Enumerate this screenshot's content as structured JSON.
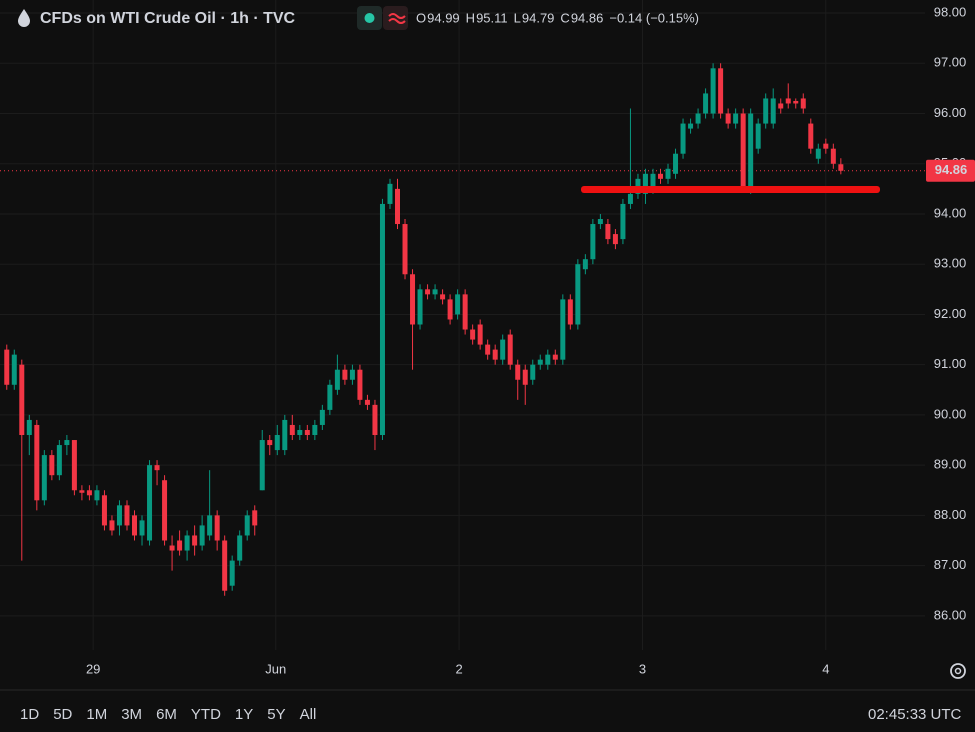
{
  "chart_data": {
    "type": "candlestick",
    "title": "CFDs on WTI Crude Oil · 1h · TVC",
    "ohlc_labels": [
      "O",
      "H",
      "L",
      "C"
    ],
    "change": "−0.14 (−0.15%)",
    "up_color": "#089981",
    "down_color": "#f23645",
    "grid": true,
    "ylim": [
      85.32,
      98.26
    ],
    "yticks": [
      {
        "value": 86,
        "label": "86.00"
      },
      {
        "value": 87,
        "label": "87.00"
      },
      {
        "value": 88,
        "label": "88.00"
      },
      {
        "value": 89,
        "label": "89.00"
      },
      {
        "value": 90,
        "label": "90.00"
      },
      {
        "value": 91,
        "label": "91.00"
      },
      {
        "value": 92,
        "label": "92.00"
      },
      {
        "value": 93,
        "label": "93.00"
      },
      {
        "value": 94,
        "label": "94.00"
      },
      {
        "value": 95,
        "label": "95.00"
      },
      {
        "value": 96,
        "label": "96.00"
      },
      {
        "value": 97,
        "label": "97.00"
      },
      {
        "value": 98,
        "label": "98.00"
      }
    ],
    "xlim": [
      -0.9,
      122.2
    ],
    "xticks": [
      {
        "value": 11.5,
        "label": "29"
      },
      {
        "value": 35.8,
        "label": "Jun"
      },
      {
        "value": 60.2,
        "label": "2"
      },
      {
        "value": 84.6,
        "label": "3"
      },
      {
        "value": 109,
        "label": "4"
      }
    ],
    "x": [
      0,
      1,
      2,
      3,
      4,
      5,
      6,
      7,
      8,
      9,
      10,
      11,
      12,
      13,
      14,
      15,
      16,
      17,
      18,
      19,
      20,
      21,
      22,
      23,
      24,
      25,
      26,
      27,
      28,
      29,
      30,
      31,
      32,
      33,
      34,
      35,
      36,
      37,
      38,
      39,
      40,
      41,
      42,
      43,
      44,
      45,
      46,
      47,
      48,
      49,
      50,
      51,
      52,
      53,
      54,
      55,
      56,
      57,
      58,
      59,
      60,
      61,
      62,
      63,
      64,
      65,
      66,
      67,
      68,
      69,
      70,
      71,
      72,
      73,
      74,
      75,
      76,
      77,
      78,
      79,
      80,
      81,
      82,
      83,
      84,
      85,
      86,
      87,
      88,
      89,
      90,
      91,
      92,
      93,
      94,
      95,
      96,
      97,
      98,
      99,
      100,
      101,
      102,
      103,
      104,
      105,
      106,
      107,
      108,
      109,
      110,
      111
    ],
    "open": [
      91.3,
      90.6,
      91.0,
      89.6,
      89.8,
      88.3,
      89.2,
      88.8,
      89.4,
      89.5,
      88.5,
      88.5,
      88.3,
      88.4,
      87.9,
      87.8,
      88.2,
      88.0,
      87.6,
      87.5,
      89.0,
      88.7,
      87.4,
      87.5,
      87.3,
      87.6,
      87.4,
      87.6,
      88.0,
      87.5,
      86.6,
      87.1,
      87.6,
      88.1,
      88.5,
      89.5,
      89.3,
      89.3,
      89.8,
      89.6,
      89.7,
      89.6,
      89.8,
      90.1,
      90.5,
      90.9,
      90.7,
      90.9,
      90.3,
      90.2,
      89.6,
      94.2,
      94.5,
      93.8,
      92.8,
      91.8,
      92.5,
      92.4,
      92.4,
      92.3,
      92.0,
      92.4,
      91.7,
      91.8,
      91.4,
      91.3,
      91.1,
      91.6,
      91.0,
      90.9,
      90.7,
      91.0,
      91.0,
      91.2,
      91.1,
      92.3,
      91.8,
      92.9,
      93.1,
      93.8,
      93.8,
      93.6,
      93.5,
      94.2,
      94.4,
      94.4,
      94.5,
      94.8,
      94.7,
      94.8,
      95.2,
      95.7,
      95.8,
      96.0,
      96.0,
      96.9,
      96.0,
      95.8,
      96.0,
      94.5,
      95.3,
      95.8,
      95.8,
      96.2,
      96.3,
      96.25,
      96.3,
      95.8,
      95.1,
      95.4,
      95.3,
      94.99
    ],
    "high": [
      91.4,
      91.3,
      91.1,
      90.0,
      89.9,
      89.3,
      89.3,
      89.5,
      89.6,
      89.5,
      88.6,
      88.6,
      88.6,
      88.5,
      88.0,
      88.3,
      88.3,
      88.1,
      88.0,
      89.1,
      89.1,
      88.8,
      87.6,
      87.7,
      87.7,
      87.8,
      88.0,
      88.9,
      88.1,
      87.6,
      87.2,
      87.7,
      88.1,
      88.2,
      89.7,
      89.6,
      89.8,
      90.0,
      90.0,
      89.8,
      89.8,
      89.9,
      90.2,
      90.7,
      91.2,
      91.0,
      91.0,
      91.0,
      90.4,
      90.3,
      94.3,
      94.7,
      94.7,
      93.9,
      92.9,
      92.6,
      92.6,
      92.6,
      92.5,
      92.4,
      92.5,
      92.5,
      91.8,
      91.9,
      91.5,
      91.4,
      91.6,
      91.7,
      91.1,
      91.0,
      91.1,
      91.2,
      91.3,
      91.3,
      92.4,
      92.4,
      93.1,
      93.2,
      93.9,
      94.0,
      93.9,
      93.7,
      94.3,
      96.1,
      94.8,
      94.9,
      94.9,
      94.9,
      95.0,
      95.3,
      95.9,
      95.9,
      96.1,
      96.5,
      97.0,
      97.0,
      96.1,
      96.1,
      96.1,
      96.1,
      95.9,
      96.4,
      96.5,
      96.3,
      96.6,
      96.3,
      96.4,
      95.9,
      95.4,
      95.5,
      95.4,
      95.11
    ],
    "low": [
      90.5,
      90.5,
      87.1,
      89.2,
      88.1,
      88.2,
      88.7,
      88.7,
      89.2,
      88.4,
      88.3,
      88.3,
      88.2,
      87.7,
      87.6,
      87.6,
      87.7,
      87.5,
      87.4,
      87.4,
      88.6,
      87.4,
      86.9,
      87.2,
      87.1,
      87.2,
      87.3,
      87.5,
      87.3,
      86.4,
      86.5,
      87.0,
      87.5,
      87.6,
      88.5,
      89.2,
      89.2,
      89.2,
      89.5,
      89.5,
      89.5,
      89.5,
      89.7,
      90.0,
      90.4,
      90.6,
      90.6,
      90.2,
      90.1,
      89.3,
      89.5,
      94.1,
      93.7,
      92.7,
      90.9,
      91.7,
      92.3,
      92.3,
      92.2,
      91.8,
      91.9,
      91.6,
      91.4,
      91.3,
      91.1,
      91.0,
      91.0,
      90.9,
      90.3,
      90.2,
      90.6,
      90.9,
      90.9,
      91.0,
      91.0,
      91.7,
      91.7,
      92.8,
      93.0,
      93.7,
      93.4,
      93.3,
      93.4,
      94.1,
      94.3,
      94.2,
      94.4,
      94.6,
      94.6,
      94.7,
      95.1,
      95.6,
      95.7,
      95.9,
      95.9,
      95.9,
      95.7,
      95.7,
      94.5,
      94.4,
      95.2,
      95.7,
      95.7,
      96.0,
      96.1,
      96.1,
      96.0,
      95.2,
      95.0,
      95.2,
      94.9,
      94.79
    ],
    "close": [
      90.6,
      91.2,
      89.6,
      89.9,
      88.3,
      89.2,
      88.8,
      89.4,
      89.5,
      88.5,
      88.45,
      88.4,
      88.5,
      87.8,
      87.7,
      88.2,
      87.8,
      87.6,
      87.9,
      89.0,
      88.9,
      87.5,
      87.3,
      87.3,
      87.6,
      87.4,
      87.8,
      88.0,
      87.5,
      86.5,
      87.1,
      87.6,
      88.0,
      87.8,
      89.5,
      89.4,
      89.6,
      89.9,
      89.6,
      89.7,
      89.6,
      89.8,
      90.1,
      90.6,
      90.9,
      90.7,
      90.9,
      90.3,
      90.2,
      89.6,
      94.2,
      94.6,
      93.8,
      92.8,
      91.8,
      92.5,
      92.4,
      92.5,
      92.3,
      91.9,
      92.4,
      91.7,
      91.5,
      91.4,
      91.2,
      91.1,
      91.5,
      91.0,
      90.7,
      90.6,
      91.0,
      91.1,
      91.2,
      91.1,
      92.3,
      91.8,
      93.0,
      93.1,
      93.8,
      93.9,
      93.5,
      93.4,
      94.2,
      94.4,
      94.7,
      94.8,
      94.8,
      94.7,
      94.9,
      95.2,
      95.8,
      95.8,
      96.0,
      96.4,
      96.9,
      96.0,
      95.8,
      96.0,
      94.5,
      96.0,
      95.8,
      96.3,
      96.3,
      96.1,
      96.2,
      96.2,
      96.1,
      95.3,
      95.3,
      95.3,
      95.0,
      94.86
    ],
    "range_buttons": [
      "1D",
      "5D",
      "1M",
      "3M",
      "6M",
      "YTD",
      "1Y",
      "5Y",
      "All"
    ],
    "clock": "02:45:33 UTC"
  }
}
